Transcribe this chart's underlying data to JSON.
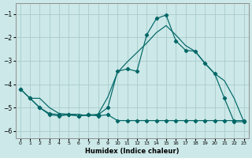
{
  "xlabel": "Humidex (Indice chaleur)",
  "bg_color": "#cce8e8",
  "grid_color": "#aacccc",
  "line_color": "#006666",
  "xlim": [
    -0.5,
    23.5
  ],
  "ylim": [
    -6.3,
    -0.55
  ],
  "yticks": [
    -6,
    -5,
    -4,
    -3,
    -2,
    -1
  ],
  "xticks": [
    0,
    1,
    2,
    3,
    4,
    5,
    6,
    7,
    8,
    9,
    10,
    11,
    12,
    13,
    14,
    15,
    16,
    17,
    18,
    19,
    20,
    21,
    22,
    23
  ],
  "line_peak_x": [
    0,
    1,
    2,
    3,
    4,
    5,
    6,
    7,
    8,
    9,
    10,
    11,
    12,
    13,
    14,
    15,
    16,
    17,
    18,
    19,
    20,
    21,
    22,
    23
  ],
  "line_peak_y": [
    -4.2,
    -4.6,
    -5.0,
    -5.25,
    -5.3,
    -5.3,
    -5.35,
    -5.3,
    -5.3,
    -5.0,
    -3.45,
    -3.35,
    -3.45,
    -1.9,
    -1.2,
    -1.05,
    -2.15,
    -2.55,
    -2.6,
    -3.1,
    -3.55,
    -4.6,
    -5.6,
    -5.6
  ],
  "line_diag_x": [
    1,
    2,
    3,
    4,
    5,
    6,
    7,
    8,
    9,
    10,
    11,
    12,
    13,
    14,
    15,
    16,
    17,
    18,
    19,
    20,
    21,
    22,
    23
  ],
  "line_diag_y": [
    -4.6,
    -4.6,
    -5.0,
    -5.25,
    -5.28,
    -5.28,
    -5.35,
    -5.28,
    -4.55,
    -3.5,
    -3.05,
    -2.65,
    -2.25,
    -1.8,
    -1.5,
    -1.9,
    -2.35,
    -2.6,
    -3.12,
    -3.55,
    -3.85,
    -4.6,
    -5.6
  ],
  "line_flat_x": [
    0,
    1,
    2,
    3,
    4,
    5,
    6,
    7,
    8,
    9,
    10,
    11,
    12,
    13,
    14,
    15,
    16,
    17,
    18,
    19,
    20,
    21,
    22,
    23
  ],
  "line_flat_y": [
    -4.2,
    -4.6,
    -5.0,
    -5.3,
    -5.35,
    -5.3,
    -5.35,
    -5.3,
    -5.35,
    -5.3,
    -5.55,
    -5.55,
    -5.55,
    -5.55,
    -5.55,
    -5.55,
    -5.55,
    -5.55,
    -5.55,
    -5.55,
    -5.55,
    -5.55,
    -5.55,
    -5.55
  ]
}
